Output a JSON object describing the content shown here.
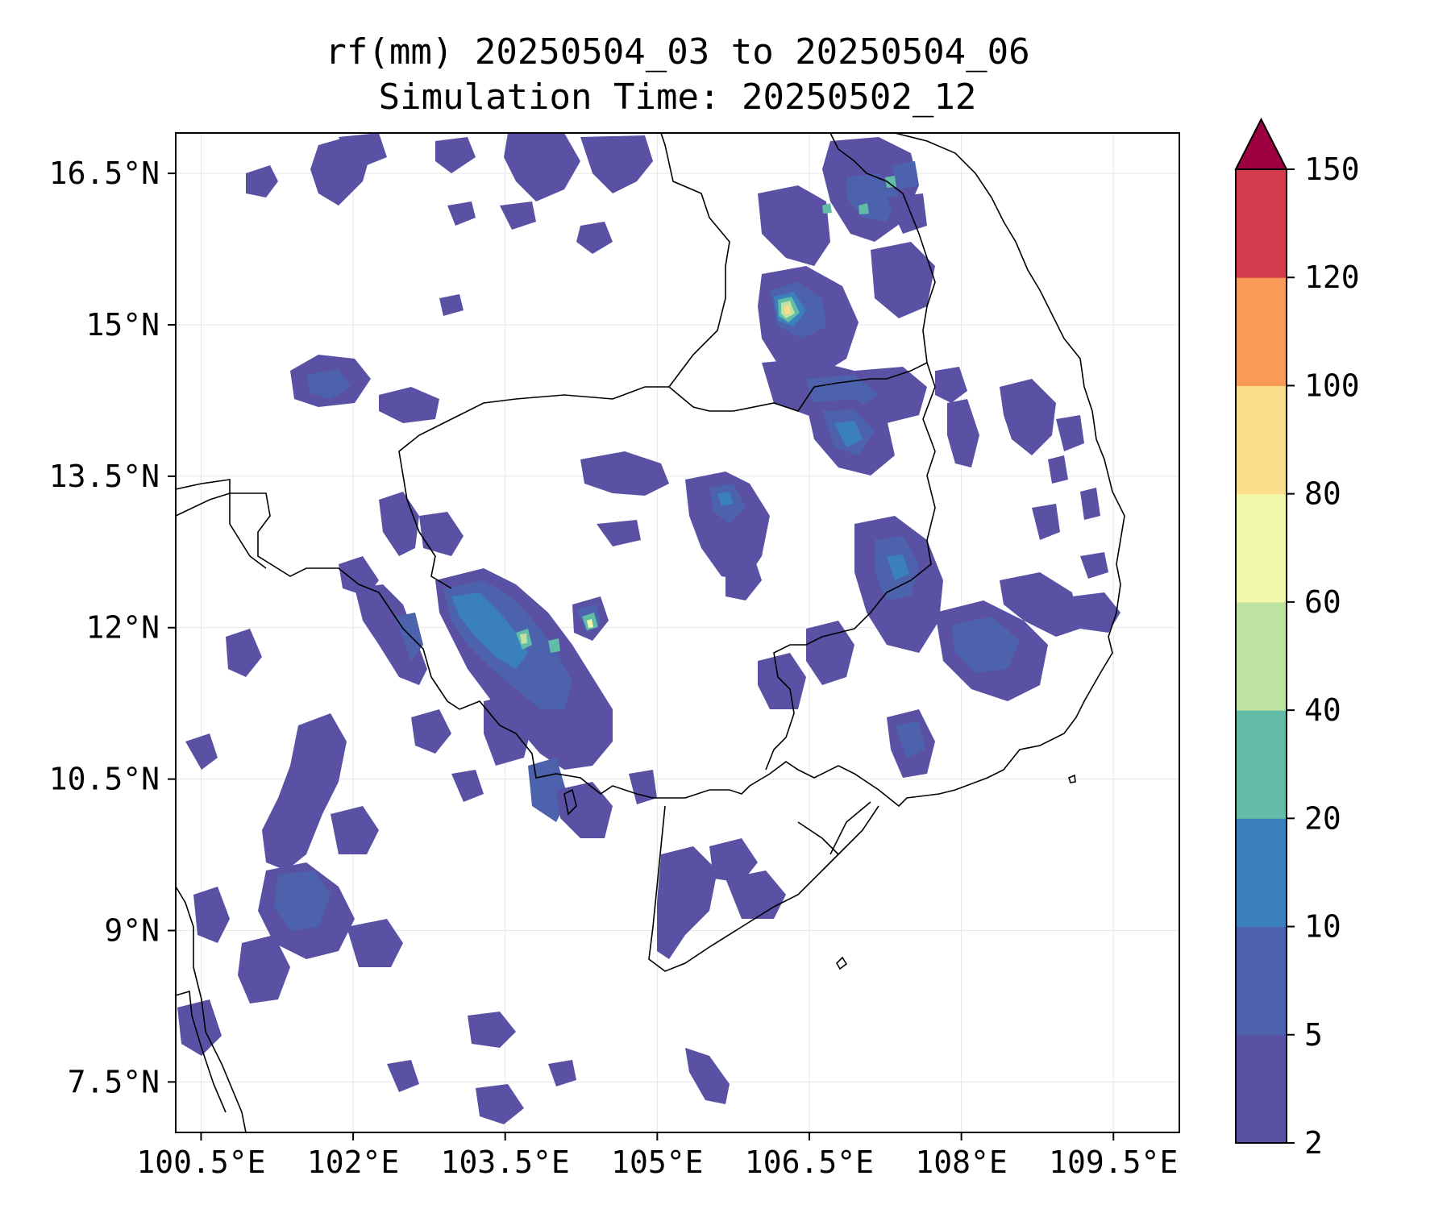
{
  "title": {
    "line1": "rf(mm) 20250504_03 to 20250504_06",
    "line2": "Simulation Time: 20250502_12"
  },
  "map": {
    "x_ticks": [
      "100.5°E",
      "102°E",
      "103.5°E",
      "105°E",
      "106.5°E",
      "108°E",
      "109.5°E"
    ],
    "y_ticks": [
      "16.5°N",
      "15°N",
      "13.5°N",
      "12°N",
      "10.5°N",
      "9°N",
      "7.5°N"
    ],
    "x_tick_values": [
      100.5,
      102,
      103.5,
      105,
      106.5,
      108,
      109.5
    ],
    "y_tick_values": [
      16.5,
      15,
      13.5,
      12,
      10.5,
      9,
      7.5
    ],
    "lon_range": [
      100.25,
      110.15
    ],
    "lat_range": [
      7.0,
      16.9
    ],
    "gridlines": true
  },
  "colorbar": {
    "levels": [
      "2",
      "5",
      "10",
      "20",
      "40",
      "60",
      "80",
      "100",
      "120",
      "150"
    ],
    "colors": [
      "#5a51a5",
      "#4c62ad",
      "#3a80bb",
      "#62bca7",
      "#bee3a1",
      "#f1f8ab",
      "#fbde89",
      "#fa9a58",
      "#d33c4e"
    ],
    "extend_color": "#9e0142",
    "extend": "max"
  }
}
